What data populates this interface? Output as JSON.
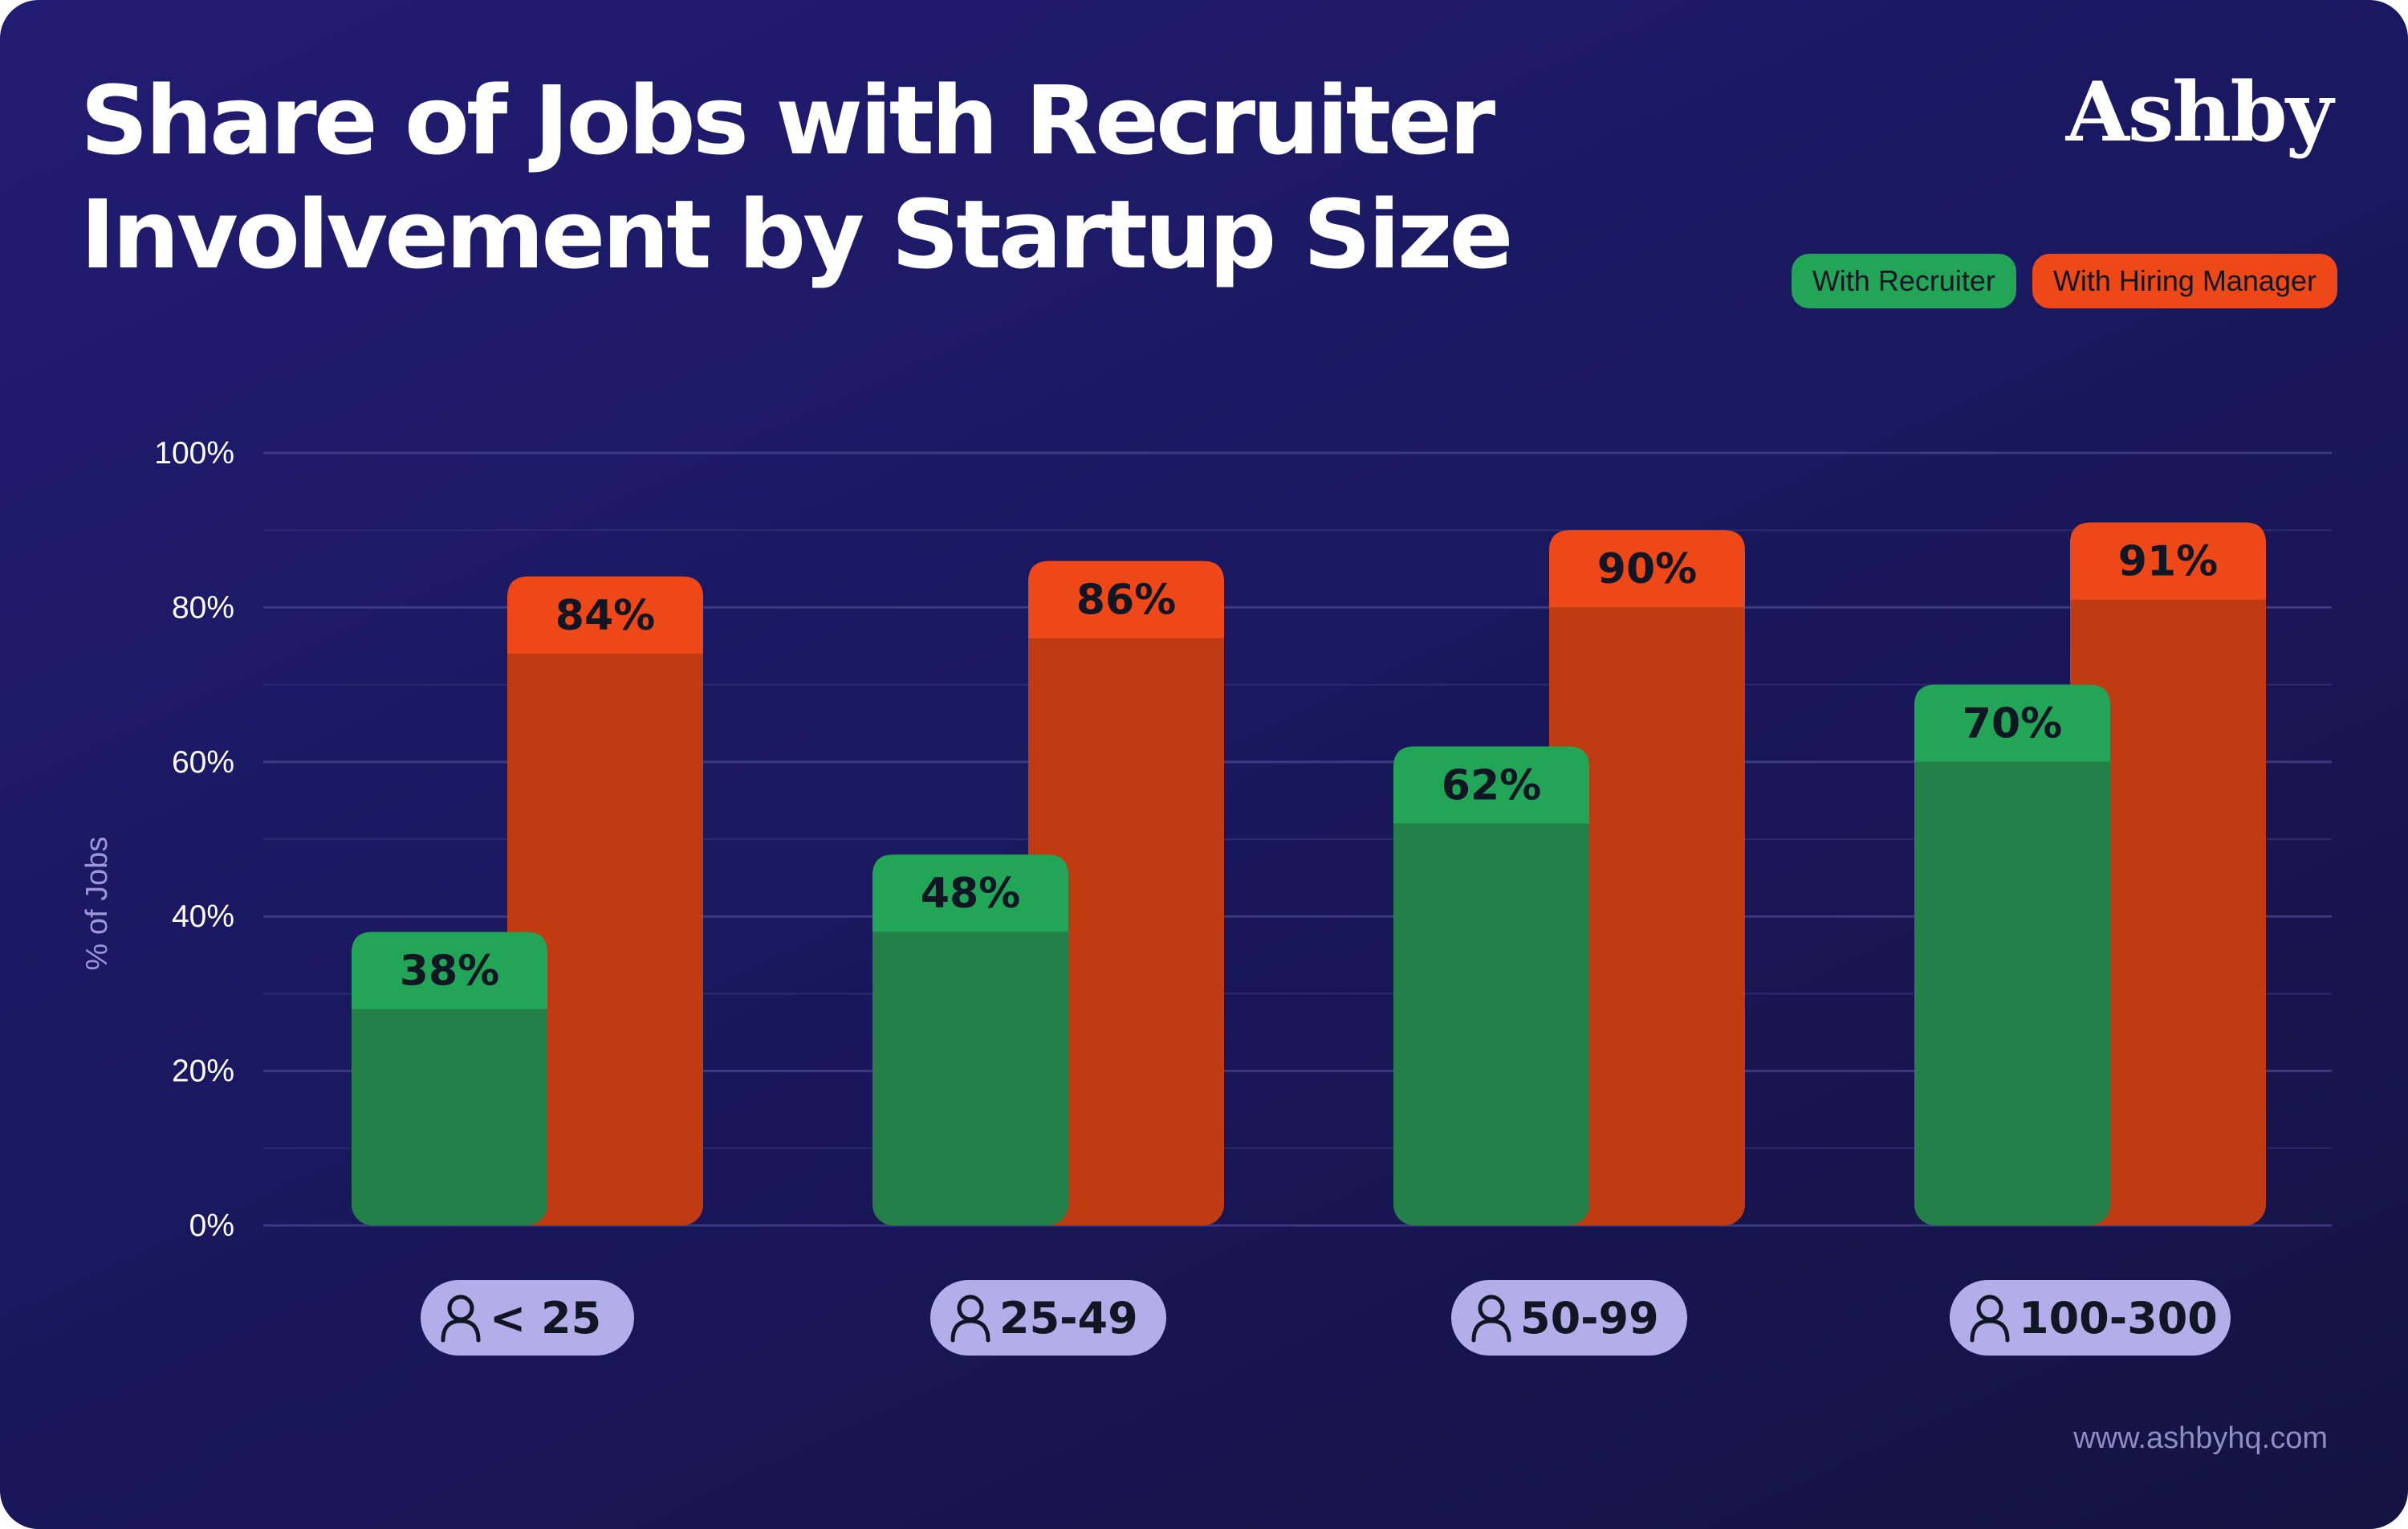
{
  "title": {
    "line1": "Share of Jobs with Recruiter",
    "line2": "Involvement by Startup Size"
  },
  "brand": {
    "logo_text": "Ashby",
    "url": "www.ashbyhq.com"
  },
  "colors": {
    "background": "#1c1a66",
    "recruiter": "#238049",
    "recruiter_label": "#22a557",
    "hiring_manager": "#c03b12",
    "hiring_manager_label": "#ee4718",
    "category_pill": "#b3aee9",
    "axis_text": "#ffffff",
    "axis_title": "#9b96d8"
  },
  "chart_data": {
    "type": "bar",
    "title": "Share of Jobs with Recruiter Involvement by Startup Size",
    "xlabel": "",
    "ylabel": "% of Jobs",
    "categories": [
      "< 25",
      "25-49",
      "50-99",
      "100-300"
    ],
    "category_icon": "person-icon",
    "series": [
      {
        "name": "With Recruiter",
        "values": [
          38,
          48,
          62,
          70
        ],
        "value_labels": [
          "38%",
          "48%",
          "62%",
          "70%"
        ]
      },
      {
        "name": "With Hiring Manager",
        "values": [
          84,
          86,
          90,
          91
        ],
        "value_labels": [
          "84%",
          "86%",
          "90%",
          "91%"
        ]
      }
    ],
    "ylim": [
      0,
      100
    ],
    "yticks": [
      0,
      20,
      40,
      60,
      80,
      100
    ],
    "ytick_labels": [
      "0%",
      "20%",
      "40%",
      "60%",
      "80%",
      "100%"
    ],
    "grid": true,
    "legend_position": "top-right"
  }
}
